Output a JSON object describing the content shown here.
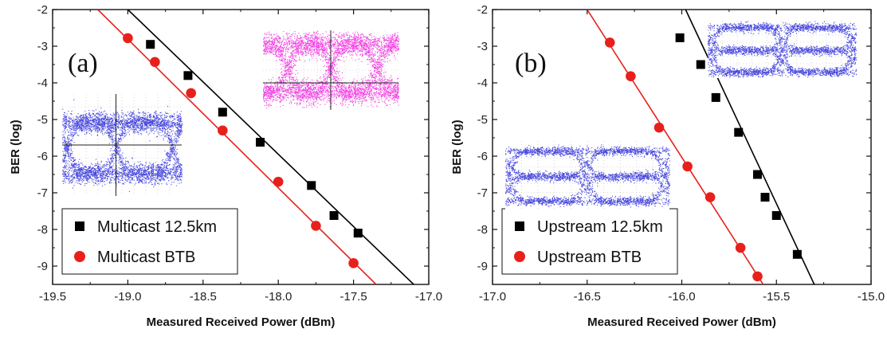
{
  "chart_data": [
    {
      "type": "scatter",
      "panel_label": "(a)",
      "xlabel": "Measured Received Power (dBm)",
      "ylabel": "BER (log)",
      "xlim": [
        -19.5,
        -17.0
      ],
      "ylim": [
        -9.5,
        -2.0
      ],
      "xticks": [
        "-19.5",
        "-19.0",
        "-18.5",
        "-18.0",
        "-17.5",
        "-17.0"
      ],
      "yticks": [
        "-2",
        "-3",
        "-4",
        "-5",
        "-6",
        "-7",
        "-8",
        "-9"
      ],
      "legend_position": "bottom-left",
      "series": [
        {
          "name": "Multicast 12.5km",
          "marker": "square",
          "color": "#000000",
          "x": [
            -18.85,
            -18.6,
            -18.37,
            -18.12,
            -17.78,
            -17.63,
            -17.47
          ],
          "y": [
            -2.95,
            -3.8,
            -4.8,
            -5.62,
            -6.8,
            -7.62,
            -8.1
          ],
          "fit_line": {
            "x": [
              -19.0,
              -17.1
            ],
            "y": [
              -2.0,
              -9.5
            ]
          }
        },
        {
          "name": "Multicast BTB",
          "marker": "circle",
          "color": "#e8201c",
          "x": [
            -19.0,
            -18.82,
            -18.58,
            -18.37,
            -18.0,
            -17.75,
            -17.5
          ],
          "y": [
            -2.78,
            -3.43,
            -4.28,
            -5.3,
            -6.7,
            -7.9,
            -8.92
          ],
          "fit_line": {
            "x": [
              -19.2,
              -17.35
            ],
            "y": [
              -2.0,
              -9.5
            ]
          }
        }
      ],
      "insets": [
        {
          "name": "eye-diagram-magenta",
          "color": "#ee22dd"
        },
        {
          "name": "eye-diagram-blue",
          "color": "#2a2ad8"
        }
      ]
    },
    {
      "type": "scatter",
      "panel_label": "(b)",
      "xlabel": "Measured Received Power (dBm)",
      "ylabel": "BER (log)",
      "xlim": [
        -17.0,
        -15.0
      ],
      "ylim": [
        -9.5,
        -2.0
      ],
      "xticks": [
        "-17.0",
        "-16.5",
        "-16.0",
        "-15.5",
        "-15.0"
      ],
      "yticks": [
        "-2",
        "-3",
        "-4",
        "-5",
        "-6",
        "-7",
        "-8",
        "-9"
      ],
      "legend_position": "bottom-left",
      "series": [
        {
          "name": "Upstream 12.5km",
          "marker": "square",
          "color": "#000000",
          "x": [
            -16.01,
            -15.9,
            -15.82,
            -15.7,
            -15.6,
            -15.56,
            -15.5,
            -15.39
          ],
          "y": [
            -2.77,
            -3.5,
            -4.4,
            -5.35,
            -6.5,
            -7.12,
            -7.62,
            -8.68
          ],
          "fit_line": {
            "x": [
              -15.98,
              -15.3
            ],
            "y": [
              -2.0,
              -9.5
            ]
          }
        },
        {
          "name": "Upstream BTB",
          "marker": "circle",
          "color": "#e8201c",
          "x": [
            -16.38,
            -16.27,
            -16.12,
            -15.97,
            -15.85,
            -15.69,
            -15.6
          ],
          "y": [
            -2.9,
            -3.82,
            -5.22,
            -6.28,
            -7.12,
            -8.5,
            -9.28
          ],
          "fit_line": {
            "x": [
              -16.5,
              -15.57
            ],
            "y": [
              -2.0,
              -9.5
            ]
          }
        }
      ],
      "insets": [
        {
          "name": "eye-diagram-blue-upper",
          "color": "#2a2ad8"
        },
        {
          "name": "eye-diagram-blue-lower",
          "color": "#2a2ad8"
        }
      ]
    }
  ]
}
